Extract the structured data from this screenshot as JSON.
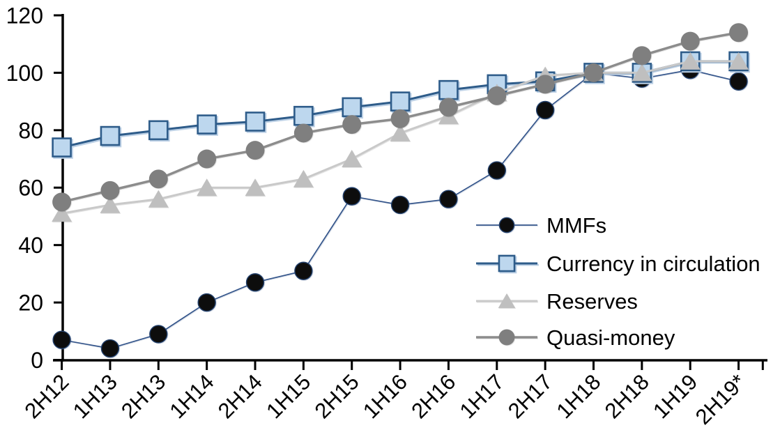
{
  "chart_data": {
    "type": "line",
    "title": "",
    "xlabel": "",
    "ylabel": "",
    "ylim": [
      0,
      120
    ],
    "grid": false,
    "legend_position": "inside-right",
    "axis_color": "#000000",
    "y_ticks": [
      "0",
      "20",
      "40",
      "60",
      "80",
      "100",
      "120"
    ],
    "categories": [
      "2H12",
      "1H13",
      "2H13",
      "1H14",
      "2H14",
      "1H15",
      "2H15",
      "1H16",
      "2H16",
      "1H17",
      "2H17",
      "1H18",
      "2H18",
      "1H19",
      "2H19*"
    ],
    "series": [
      {
        "name": "MMFs",
        "marker": "circle",
        "line_color": "#34558b",
        "line_width": 1.7,
        "marker_fill": "#0d0d0d",
        "marker_stroke": "#24426e",
        "values": [
          7,
          4,
          9,
          20,
          27,
          31,
          57,
          54,
          56,
          66,
          87,
          100,
          98,
          101,
          97
        ]
      },
      {
        "name": "Currency in circulation",
        "marker": "square",
        "line_color": "#2e5c8a",
        "line_width": 3,
        "marker_fill": "#bdd7ee",
        "marker_stroke": "#2e5c8a",
        "values": [
          74,
          78,
          80,
          82,
          83,
          85,
          88,
          90,
          94,
          96,
          97,
          100,
          100,
          104,
          104
        ]
      },
      {
        "name": "Reserves",
        "marker": "triangle",
        "line_color": "#c9c9c9",
        "line_width": 3,
        "marker_fill": "#bfbfbf",
        "marker_stroke": "none",
        "values": [
          51,
          54,
          56,
          60,
          60,
          63,
          70,
          79,
          85,
          93,
          99,
          100,
          100,
          104,
          104
        ]
      },
      {
        "name": "Quasi-money",
        "marker": "circle",
        "line_color": "#8c8c8c",
        "line_width": 3.5,
        "marker_fill": "#7f7f7f",
        "marker_stroke": "none",
        "values": [
          55,
          59,
          63,
          70,
          73,
          79,
          82,
          84,
          88,
          92,
          96,
          100,
          106,
          111,
          114
        ]
      }
    ]
  }
}
